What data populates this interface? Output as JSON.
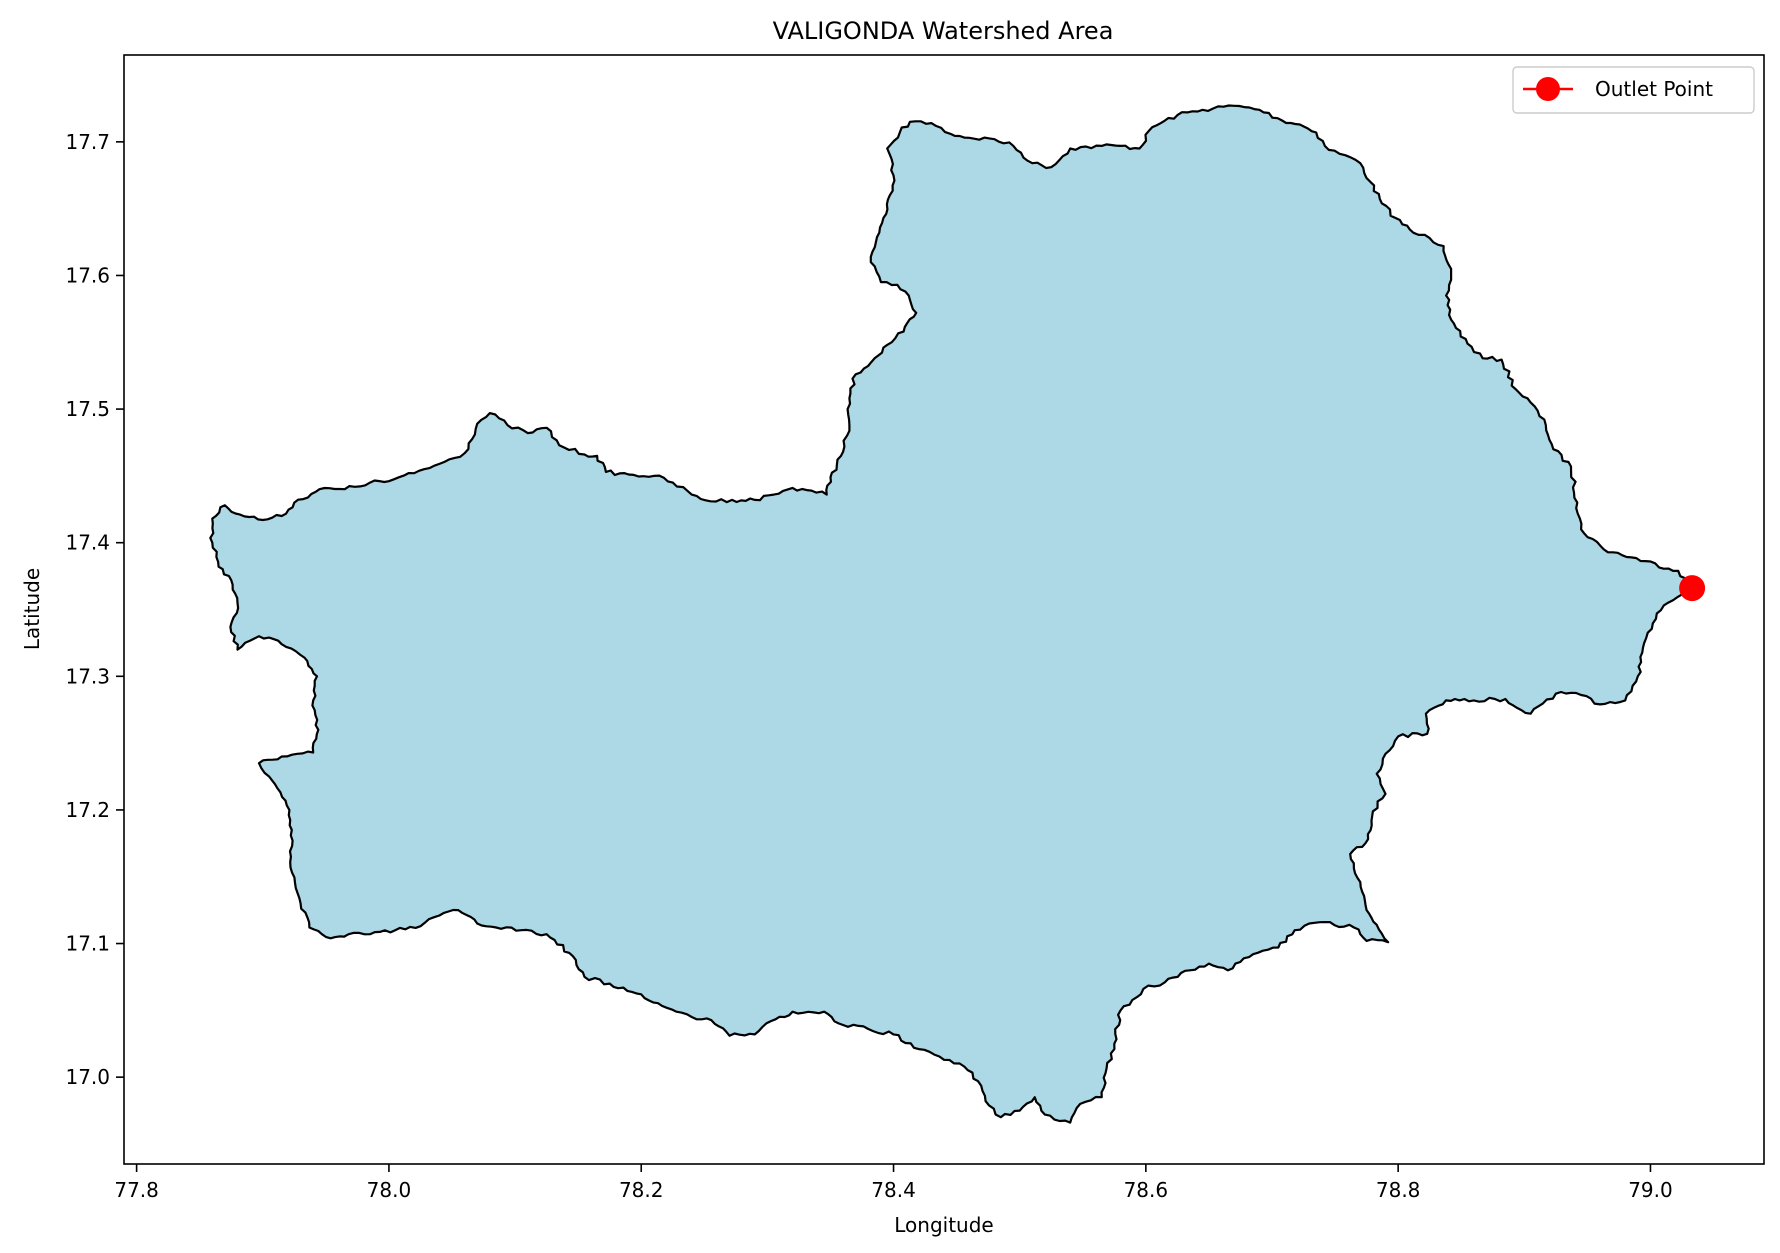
{
  "chart_data": {
    "type": "map",
    "title": "VALIGONDA Watershed Area",
    "xlabel": "Longitude",
    "ylabel": "Latitude",
    "xlim": [
      77.79,
      79.09
    ],
    "ylim": [
      16.935,
      17.765
    ],
    "x_ticks": [
      77.8,
      78.0,
      78.2,
      78.4,
      78.6,
      78.8,
      79.0
    ],
    "x_tick_labels": [
      "77.8",
      "78.0",
      "78.2",
      "78.4",
      "78.6",
      "78.8",
      "79.0"
    ],
    "y_ticks": [
      17.0,
      17.1,
      17.2,
      17.3,
      17.4,
      17.5,
      17.6,
      17.7
    ],
    "y_tick_labels": [
      "17.0",
      "17.1",
      "17.2",
      "17.3",
      "17.4",
      "17.5",
      "17.6",
      "17.7"
    ],
    "grid": false,
    "legend_position": "top-right",
    "colors": {
      "watershed_fill": "#add8e6",
      "watershed_edge": "#000000",
      "outlet": "#ff0000"
    },
    "outlet": {
      "name": "Outlet Point",
      "lon": 79.033,
      "lat": 17.366
    },
    "watershed_boundary": [
      [
        78.405,
        17.707
      ],
      [
        78.413,
        17.715
      ],
      [
        78.43,
        17.714
      ],
      [
        78.445,
        17.706
      ],
      [
        78.46,
        17.703
      ],
      [
        78.48,
        17.702
      ],
      [
        78.495,
        17.697
      ],
      [
        78.51,
        17.684
      ],
      [
        78.525,
        17.681
      ],
      [
        78.54,
        17.695
      ],
      [
        78.565,
        17.697
      ],
      [
        78.58,
        17.697
      ],
      [
        78.595,
        17.695
      ],
      [
        78.605,
        17.711
      ],
      [
        78.625,
        17.72
      ],
      [
        78.645,
        17.724
      ],
      [
        78.67,
        17.727
      ],
      [
        78.69,
        17.724
      ],
      [
        78.708,
        17.716
      ],
      [
        78.722,
        17.713
      ],
      [
        78.735,
        17.707
      ],
      [
        78.745,
        17.694
      ],
      [
        78.758,
        17.69
      ],
      [
        78.77,
        17.684
      ],
      [
        78.778,
        17.67
      ],
      [
        78.787,
        17.654
      ],
      [
        78.798,
        17.643
      ],
      [
        78.812,
        17.632
      ],
      [
        78.825,
        17.628
      ],
      [
        78.836,
        17.622
      ],
      [
        78.842,
        17.605
      ],
      [
        78.838,
        17.585
      ],
      [
        78.842,
        17.567
      ],
      [
        78.855,
        17.549
      ],
      [
        78.867,
        17.538
      ],
      [
        78.882,
        17.537
      ],
      [
        78.893,
        17.515
      ],
      [
        78.905,
        17.505
      ],
      [
        78.917,
        17.488
      ],
      [
        78.923,
        17.47
      ],
      [
        78.937,
        17.457
      ],
      [
        78.942,
        17.43
      ],
      [
        78.945,
        17.41
      ],
      [
        78.963,
        17.395
      ],
      [
        78.985,
        17.389
      ],
      [
        79.022,
        17.379
      ],
      [
        79.033,
        17.366
      ],
      [
        79.018,
        17.357
      ],
      [
        79.005,
        17.347
      ],
      [
        78.995,
        17.325
      ],
      [
        78.99,
        17.3
      ],
      [
        78.98,
        17.282
      ],
      [
        78.96,
        17.279
      ],
      [
        78.945,
        17.286
      ],
      [
        78.925,
        17.287
      ],
      [
        78.905,
        17.272
      ],
      [
        78.885,
        17.283
      ],
      [
        78.86,
        17.282
      ],
      [
        78.845,
        17.283
      ],
      [
        78.832,
        17.278
      ],
      [
        78.822,
        17.272
      ],
      [
        78.823,
        17.257
      ],
      [
        78.8,
        17.255
      ],
      [
        78.79,
        17.242
      ],
      [
        78.783,
        17.227
      ],
      [
        78.79,
        17.212
      ],
      [
        78.78,
        17.199
      ],
      [
        78.774,
        17.175
      ],
      [
        78.762,
        17.167
      ],
      [
        78.77,
        17.146
      ],
      [
        78.775,
        17.125
      ],
      [
        78.783,
        17.114
      ],
      [
        78.792,
        17.101
      ],
      [
        78.775,
        17.102
      ],
      [
        78.765,
        17.112
      ],
      [
        78.738,
        17.116
      ],
      [
        78.718,
        17.11
      ],
      [
        78.705,
        17.097
      ],
      [
        78.685,
        17.092
      ],
      [
        78.665,
        17.08
      ],
      [
        78.65,
        17.085
      ],
      [
        78.635,
        17.08
      ],
      [
        78.615,
        17.071
      ],
      [
        78.598,
        17.066
      ],
      [
        78.58,
        17.05
      ],
      [
        78.575,
        17.025
      ],
      [
        78.568,
        17.003
      ],
      [
        78.565,
        16.985
      ],
      [
        78.548,
        16.98
      ],
      [
        78.54,
        16.966
      ],
      [
        78.52,
        16.972
      ],
      [
        78.512,
        16.985
      ],
      [
        78.5,
        16.975
      ],
      [
        78.485,
        16.97
      ],
      [
        78.473,
        16.982
      ],
      [
        78.467,
        16.997
      ],
      [
        78.456,
        17.008
      ],
      [
        78.44,
        17.013
      ],
      [
        78.42,
        17.021
      ],
      [
        78.4,
        17.032
      ],
      [
        78.38,
        17.036
      ],
      [
        78.36,
        17.039
      ],
      [
        78.345,
        17.049
      ],
      [
        78.32,
        17.049
      ],
      [
        78.303,
        17.042
      ],
      [
        78.29,
        17.032
      ],
      [
        78.27,
        17.031
      ],
      [
        78.252,
        17.044
      ],
      [
        78.24,
        17.045
      ],
      [
        78.22,
        17.052
      ],
      [
        78.2,
        17.062
      ],
      [
        78.175,
        17.07
      ],
      [
        78.155,
        17.075
      ],
      [
        78.143,
        17.093
      ],
      [
        78.125,
        17.107
      ],
      [
        78.105,
        17.11
      ],
      [
        78.085,
        17.112
      ],
      [
        78.07,
        17.115
      ],
      [
        78.055,
        17.125
      ],
      [
        78.04,
        17.121
      ],
      [
        78.025,
        17.113
      ],
      [
        78.005,
        17.11
      ],
      [
        77.985,
        17.107
      ],
      [
        77.968,
        17.107
      ],
      [
        77.95,
        17.105
      ],
      [
        77.937,
        17.112
      ],
      [
        77.93,
        17.13
      ],
      [
        77.922,
        17.157
      ],
      [
        77.923,
        17.185
      ],
      [
        77.918,
        17.207
      ],
      [
        77.905,
        17.225
      ],
      [
        77.897,
        17.235
      ],
      [
        77.915,
        17.24
      ],
      [
        77.94,
        17.243
      ],
      [
        77.944,
        17.26
      ],
      [
        77.94,
        17.282
      ],
      [
        77.943,
        17.3
      ],
      [
        77.933,
        17.314
      ],
      [
        77.915,
        17.324
      ],
      [
        77.905,
        17.329
      ],
      [
        77.897,
        17.33
      ],
      [
        77.88,
        17.32
      ],
      [
        77.875,
        17.333
      ],
      [
        77.88,
        17.355
      ],
      [
        77.875,
        17.372
      ],
      [
        77.865,
        17.382
      ],
      [
        77.86,
        17.4
      ],
      [
        77.86,
        17.418
      ],
      [
        77.87,
        17.428
      ],
      [
        77.882,
        17.421
      ],
      [
        77.9,
        17.417
      ],
      [
        77.915,
        17.42
      ],
      [
        77.925,
        17.43
      ],
      [
        77.945,
        17.44
      ],
      [
        77.965,
        17.44
      ],
      [
        77.985,
        17.445
      ],
      [
        78.0,
        17.446
      ],
      [
        78.02,
        17.452
      ],
      [
        78.04,
        17.459
      ],
      [
        78.06,
        17.467
      ],
      [
        78.07,
        17.489
      ],
      [
        78.08,
        17.497
      ],
      [
        78.094,
        17.488
      ],
      [
        78.11,
        17.482
      ],
      [
        78.125,
        17.486
      ],
      [
        78.135,
        17.473
      ],
      [
        78.155,
        17.466
      ],
      [
        78.165,
        17.465
      ],
      [
        78.172,
        17.453
      ],
      [
        78.19,
        17.451
      ],
      [
        78.21,
        17.45
      ],
      [
        78.225,
        17.445
      ],
      [
        78.24,
        17.436
      ],
      [
        78.255,
        17.431
      ],
      [
        78.272,
        17.432
      ],
      [
        78.29,
        17.432
      ],
      [
        78.305,
        17.436
      ],
      [
        78.32,
        17.441
      ],
      [
        78.335,
        17.439
      ],
      [
        78.347,
        17.436
      ],
      [
        78.35,
        17.449
      ],
      [
        78.36,
        17.468
      ],
      [
        78.365,
        17.488
      ],
      [
        78.365,
        17.508
      ],
      [
        78.37,
        17.526
      ],
      [
        78.385,
        17.538
      ],
      [
        78.395,
        17.548
      ],
      [
        78.408,
        17.558
      ],
      [
        78.418,
        17.572
      ],
      [
        78.412,
        17.585
      ],
      [
        78.403,
        17.593
      ],
      [
        78.39,
        17.595
      ],
      [
        78.382,
        17.61
      ],
      [
        78.386,
        17.625
      ],
      [
        78.392,
        17.643
      ],
      [
        78.397,
        17.66
      ],
      [
        78.4,
        17.675
      ],
      [
        78.395,
        17.695
      ]
    ]
  },
  "legend": {
    "label": "Outlet Point"
  }
}
